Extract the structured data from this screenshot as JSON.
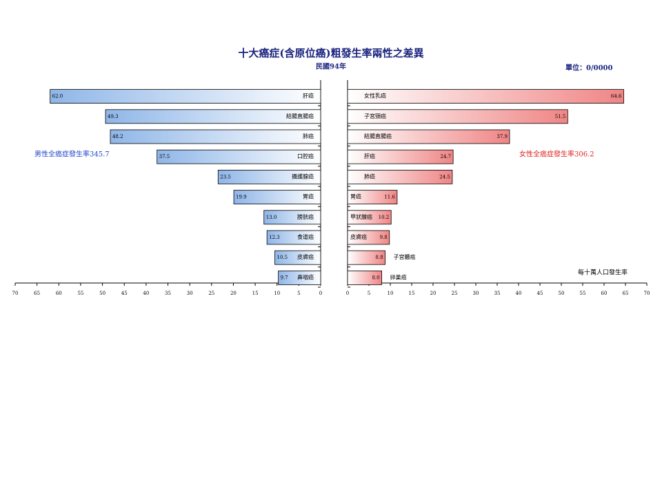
{
  "header": {
    "title": "十大癌症(含原位癌)粗發生率兩性之差異",
    "subtitle": "民國94年",
    "unit": "單位：0/0000"
  },
  "chart_data": [
    {
      "type": "bar",
      "orientation": "horizontal",
      "direction": "reversed",
      "color": "#8fb6e8",
      "annotation": "男性全癌症發生率345.7",
      "categories": [
        "肝癌",
        "結腸直腸癌",
        "肺癌",
        "口腔癌",
        "攝護腺癌",
        "胃癌",
        "膀胱癌",
        "食道癌",
        "皮膚癌",
        "鼻咽癌"
      ],
      "values": [
        62.0,
        49.3,
        48.2,
        37.5,
        23.5,
        19.9,
        13.0,
        12.3,
        10.5,
        9.7
      ],
      "value_labels": [
        "62.0",
        "49.3",
        "48.2",
        "37.5",
        "23.5",
        "19.9",
        "13.0",
        "12.3",
        "10.5",
        "9.7"
      ],
      "xlim": [
        0,
        70
      ],
      "xticks": [
        0,
        5,
        10,
        15,
        20,
        25,
        30,
        35,
        40,
        45,
        50,
        55,
        60,
        65,
        70
      ],
      "grid": false
    },
    {
      "type": "bar",
      "orientation": "horizontal",
      "direction": "normal",
      "color": "#f08585",
      "annotation": "女性全癌症發生率306.2",
      "axis_note": "每十萬人口發生率",
      "categories": [
        "女性乳癌",
        "子宮頸癌",
        "結腸直腸癌",
        "肝癌",
        "肺癌",
        "胃癌",
        "甲狀腺癌",
        "皮膚癌",
        "子宮體癌",
        "卵巢癌"
      ],
      "values": [
        64.6,
        51.5,
        37.9,
        24.7,
        24.5,
        11.6,
        10.2,
        9.8,
        8.8,
        8.0
      ],
      "value_labels": [
        "64.6",
        "51.5",
        "37.9",
        "24.7",
        "24.5",
        "11.6",
        "10.2",
        "9.8",
        "8.8",
        "8.0"
      ],
      "xlim": [
        0,
        70
      ],
      "xticks": [
        0,
        5,
        10,
        15,
        20,
        25,
        30,
        35,
        40,
        45,
        50,
        55,
        60,
        65,
        70
      ],
      "grid": false
    }
  ]
}
